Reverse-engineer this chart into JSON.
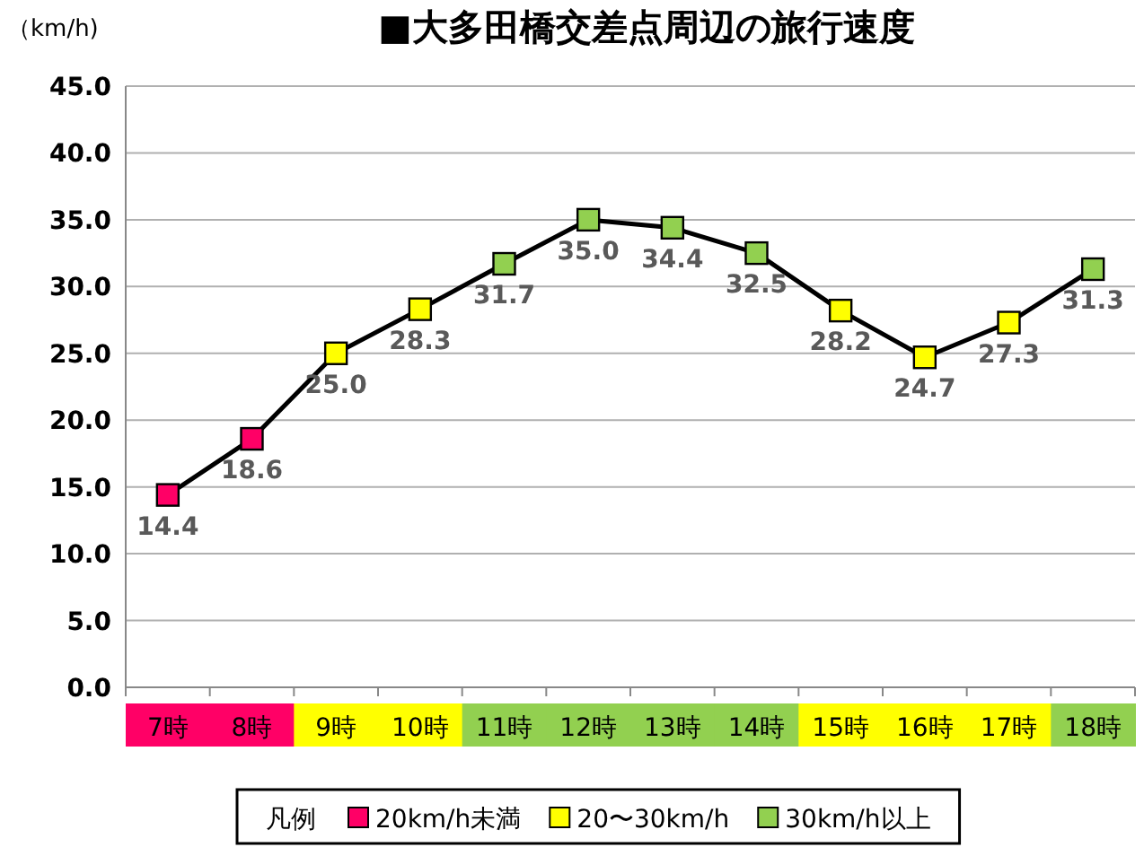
{
  "chart_data": {
    "type": "line",
    "title": "■大多田橋交差点周辺の旅行速度",
    "ylabel": "（km/h)",
    "categories": [
      "7時",
      "8時",
      "9時",
      "10時",
      "11時",
      "12時",
      "13時",
      "14時",
      "15時",
      "16時",
      "17時",
      "18時"
    ],
    "ylim": [
      0,
      45
    ],
    "yticks": [
      {
        "value": 0,
        "label": "0.0"
      },
      {
        "value": 5,
        "label": "5.0"
      },
      {
        "value": 10,
        "label": "10.0"
      },
      {
        "value": 15,
        "label": "15.0"
      },
      {
        "value": 20,
        "label": "20.0"
      },
      {
        "value": 25,
        "label": "25.0"
      },
      {
        "value": 30,
        "label": "30.0"
      },
      {
        "value": 35,
        "label": "35.0"
      },
      {
        "value": 40,
        "label": "40.0"
      },
      {
        "value": 45,
        "label": "45.0"
      }
    ],
    "grid": "y",
    "legend": "bottom",
    "legend_title": "凡例",
    "series": [
      {
        "type": "line",
        "color": "#000000",
        "marker": "none",
        "values": [
          14.4,
          18.6,
          25.0,
          28.3,
          31.7,
          35.0,
          34.4,
          32.5,
          28.2,
          24.7,
          27.3,
          31.3
        ],
        "value_labels": [
          "14.4",
          "18.6",
          "25.0",
          "28.3",
          "31.7",
          "35.0",
          "34.4",
          "32.5",
          "28.2",
          "24.7",
          "27.3",
          "31.3"
        ]
      },
      {
        "type": "scatter",
        "name": "20km/h未満",
        "color": "#ff0066",
        "marker": "square",
        "values": [
          14.4,
          18.6,
          null,
          null,
          null,
          null,
          null,
          null,
          null,
          null,
          null,
          null
        ]
      },
      {
        "type": "scatter",
        "name": "20〜30km/h",
        "color": "#ffff00",
        "marker": "square",
        "values": [
          null,
          null,
          25.0,
          28.3,
          null,
          null,
          null,
          null,
          28.2,
          24.7,
          27.3,
          null
        ]
      },
      {
        "type": "scatter",
        "name": "30km/h以上",
        "color": "#92d050",
        "marker": "square",
        "values": [
          null,
          null,
          null,
          null,
          31.7,
          35.0,
          34.4,
          32.5,
          null,
          null,
          null,
          31.3
        ]
      }
    ]
  }
}
